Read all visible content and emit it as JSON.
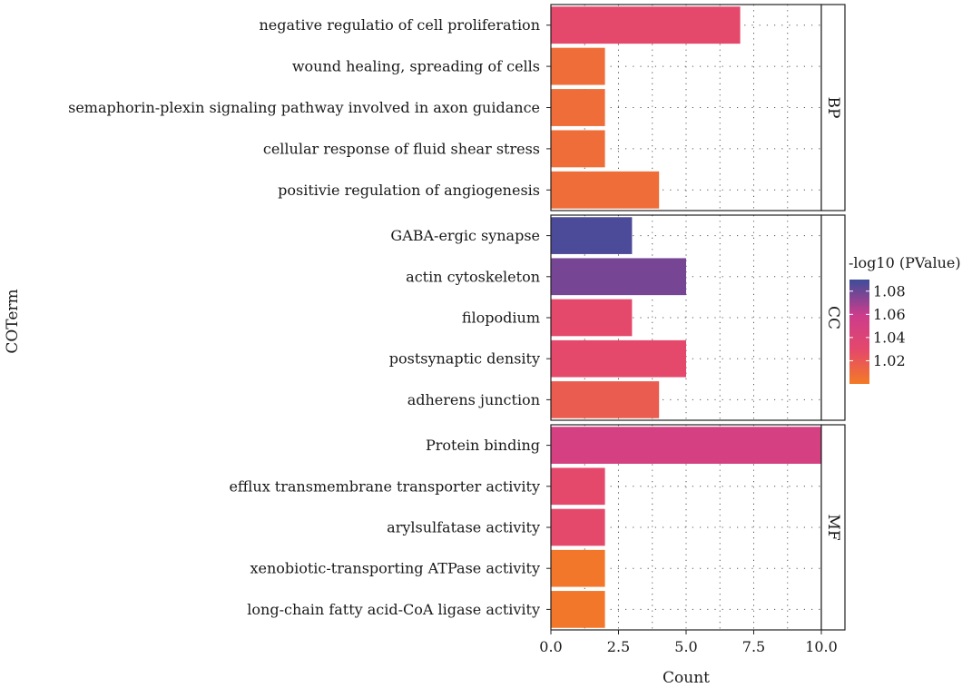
{
  "chart_data": {
    "type": "bar",
    "orientation": "horizontal",
    "xlabel": "Count",
    "ylabel": "COTerm",
    "xlim": [
      0,
      10
    ],
    "x_ticks": [
      "0.0",
      "2.5",
      "5.0",
      "7.5",
      "10.0"
    ],
    "x_tick_values": [
      0,
      2.5,
      5,
      7.5,
      10
    ],
    "grid": "dotted",
    "legend": {
      "title": "-log10 (PValue)",
      "placement": "right",
      "range": [
        1.0,
        1.09
      ],
      "ticks": [
        "1.08",
        "1.06",
        "1.04",
        "1.02"
      ],
      "tick_values": [
        1.08,
        1.06,
        1.04,
        1.02
      ],
      "colors": [
        "#f37a26",
        "#e4486b",
        "#cc3c8c",
        "#3d4d9a"
      ]
    },
    "facets": [
      {
        "name": "BP",
        "categories": [
          "negative regulatio of cell proliferation",
          "wound healing, spreading of cells",
          "semaphorin-plexin signaling pathway involved in axon guidance",
          "cellular response of fluid shear stress",
          "positivie regulation of angiogenesis"
        ],
        "values": [
          7,
          2,
          2,
          2,
          4
        ],
        "pvalue": [
          1.03,
          1.008,
          1.008,
          1.008,
          1.008
        ]
      },
      {
        "name": "CC",
        "categories": [
          "GABA-ergic synapse",
          "actin cytoskeleton",
          "filopodium",
          "postsynaptic density",
          "adherens junction"
        ],
        "values": [
          3,
          5,
          3,
          5,
          4
        ],
        "pvalue": [
          1.087,
          1.078,
          1.03,
          1.03,
          1.018
        ]
      },
      {
        "name": "MF",
        "categories": [
          "Protein binding",
          "efflux transmembrane transporter activity",
          "arylsulfatase activity",
          "xenobiotic-transporting ATPase activity",
          "long-chain fatty acid-CoA ligase activity"
        ],
        "values": [
          10,
          2,
          2,
          2,
          2
        ],
        "pvalue": [
          1.05,
          1.03,
          1.03,
          1.002,
          1.002
        ]
      }
    ]
  }
}
